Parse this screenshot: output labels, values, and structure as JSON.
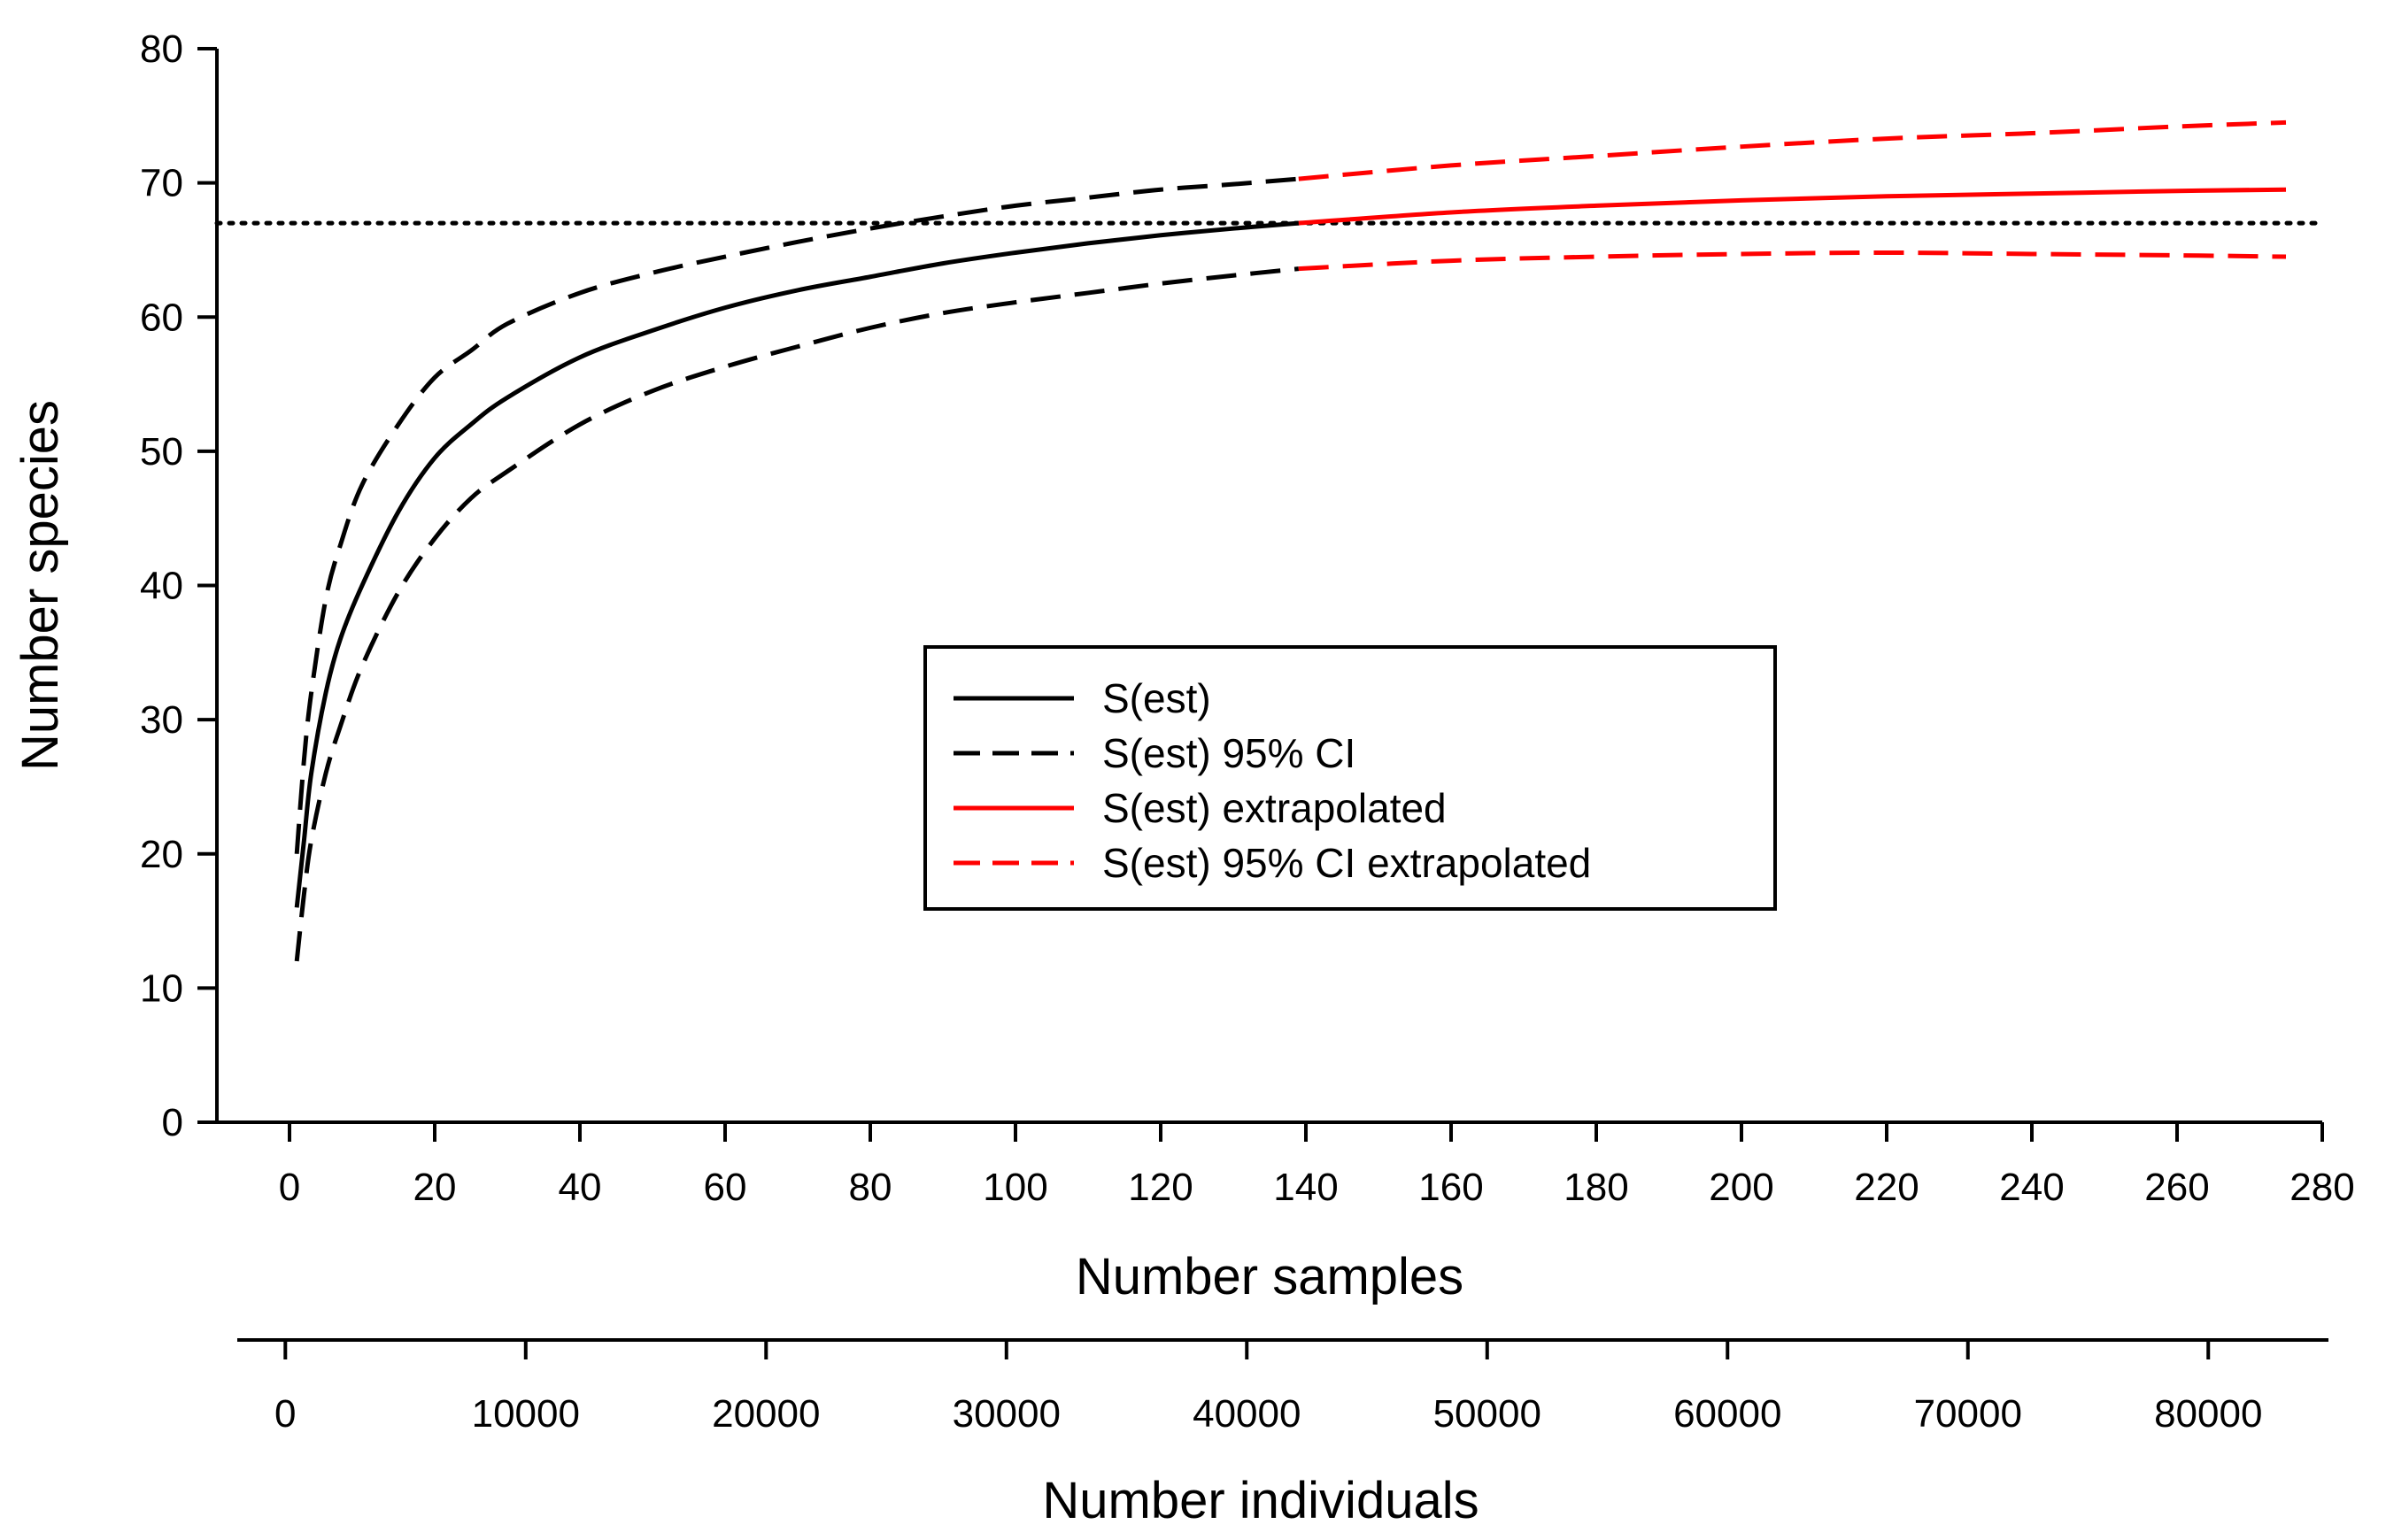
{
  "chart_data": {
    "type": "line",
    "x_axis": {
      "label": "Number samples",
      "range": [
        -10,
        280
      ],
      "ticks": [
        0,
        20,
        40,
        60,
        80,
        100,
        120,
        140,
        160,
        180,
        200,
        220,
        240,
        260,
        280
      ]
    },
    "secondary_x_axis": {
      "label": "Number individuals",
      "range": [
        -2000,
        85000
      ],
      "ticks": [
        0,
        10000,
        20000,
        30000,
        40000,
        50000,
        60000,
        70000,
        80000
      ],
      "tick_labels": [
        "0",
        "10000",
        "20000",
        "30000",
        "40000",
        "50000",
        "60000",
        "70000",
        "80000"
      ]
    },
    "y_axis": {
      "label": "Number species",
      "range": [
        0,
        80
      ],
      "ticks": [
        0,
        10,
        20,
        30,
        40,
        50,
        60,
        70,
        80
      ]
    },
    "reference_line": {
      "y": 67,
      "style": "dotted",
      "color": "#000000"
    },
    "legend": {
      "position": "center",
      "entries": [
        {
          "label": "S(est)",
          "color": "#000000",
          "style": "solid"
        },
        {
          "label": "S(est) 95% CI",
          "color": "#000000",
          "style": "dashed"
        },
        {
          "label": "S(est) extrapolated",
          "color": "#ff0000",
          "style": "solid"
        },
        {
          "label": "S(est) 95% CI extrapolated",
          "color": "#ff0000",
          "style": "dashed"
        }
      ]
    },
    "series": [
      {
        "name": "S(est)",
        "color": "#000000",
        "style": "solid",
        "x": [
          1,
          2,
          3,
          5,
          7,
          10,
          15,
          20,
          25,
          30,
          40,
          50,
          60,
          70,
          80,
          90,
          100,
          110,
          120,
          130,
          139
        ],
        "y": [
          16,
          21,
          26,
          32,
          36,
          40,
          45.5,
          49.5,
          52,
          54,
          57,
          59,
          60.7,
          62,
          63,
          64,
          64.8,
          65.5,
          66.1,
          66.6,
          67
        ]
      },
      {
        "name": "S(est) 95% CI upper",
        "color": "#000000",
        "style": "dashed",
        "x": [
          1,
          2,
          3,
          5,
          7,
          10,
          15,
          20,
          25,
          30,
          40,
          50,
          60,
          70,
          80,
          90,
          100,
          110,
          120,
          130,
          139
        ],
        "y": [
          20,
          27,
          32,
          39,
          43,
          47.5,
          52,
          55.5,
          57.5,
          59.5,
          61.8,
          63.3,
          64.5,
          65.6,
          66.6,
          67.5,
          68.3,
          68.9,
          69.5,
          69.9,
          70.3
        ]
      },
      {
        "name": "S(est) 95% CI lower",
        "color": "#000000",
        "style": "dashed",
        "x": [
          1,
          2,
          3,
          5,
          7,
          10,
          15,
          20,
          25,
          30,
          40,
          50,
          60,
          70,
          80,
          90,
          100,
          110,
          120,
          130,
          139
        ],
        "y": [
          12,
          17,
          21,
          26,
          29.5,
          34,
          39.5,
          43.5,
          46.5,
          48.5,
          52,
          54.5,
          56.3,
          57.8,
          59.2,
          60.3,
          61.1,
          61.8,
          62.5,
          63.1,
          63.6
        ]
      },
      {
        "name": "S(est) extrapolated",
        "color": "#ff0000",
        "style": "solid",
        "x": [
          139,
          160,
          180,
          200,
          220,
          240,
          260,
          275
        ],
        "y": [
          67,
          67.8,
          68.3,
          68.7,
          69,
          69.2,
          69.4,
          69.5
        ]
      },
      {
        "name": "S(est) 95% CI extrapolated upper",
        "color": "#ff0000",
        "style": "dashed",
        "x": [
          139,
          160,
          180,
          200,
          220,
          240,
          260,
          275
        ],
        "y": [
          70.3,
          71.3,
          72,
          72.7,
          73.3,
          73.7,
          74.2,
          74.5
        ]
      },
      {
        "name": "S(est) 95% CI extrapolated lower",
        "color": "#ff0000",
        "style": "dashed",
        "x": [
          139,
          160,
          180,
          200,
          220,
          240,
          260,
          275
        ],
        "y": [
          63.6,
          64.2,
          64.5,
          64.7,
          64.8,
          64.7,
          64.6,
          64.5
        ]
      }
    ]
  }
}
